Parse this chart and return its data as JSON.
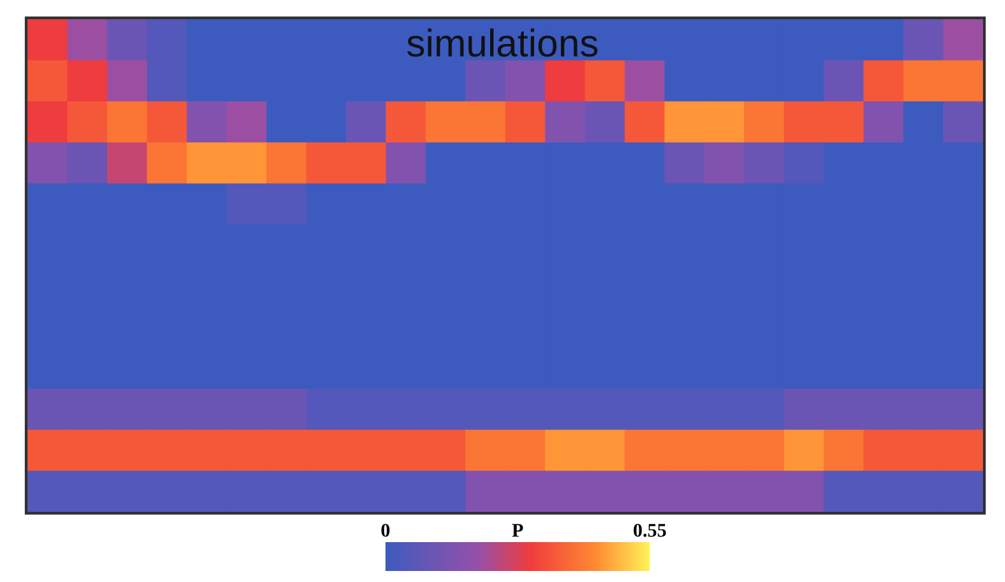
{
  "chart_data": {
    "type": "heatmap",
    "title": "simulations",
    "clabel": "P",
    "clim": [
      0,
      0.55
    ],
    "cticks": [
      0,
      0.55
    ],
    "categories": [
      null,
      null,
      null,
      null,
      null,
      null,
      null,
      null,
      null,
      null,
      null,
      null,
      null,
      null,
      null,
      null,
      null,
      null,
      null,
      null,
      null,
      null,
      null,
      null
    ],
    "y_categories": [
      null,
      null,
      null,
      null,
      null,
      null,
      null,
      null,
      null,
      null,
      null,
      null
    ],
    "cells": [
      [
        0.3,
        0.2,
        0.1,
        0.05,
        0,
        0,
        0,
        0,
        0,
        0,
        0,
        0,
        0,
        0,
        0,
        0,
        0,
        0,
        0,
        0,
        0,
        0,
        0.1,
        0.2
      ],
      [
        0.35,
        0.3,
        0.2,
        0.05,
        0,
        0,
        0,
        0,
        0,
        0,
        0,
        0.1,
        0.15,
        0.3,
        0.35,
        0.2,
        0,
        0,
        0,
        0,
        0.1,
        0.35,
        0.4,
        0.4
      ],
      [
        0.3,
        0.35,
        0.4,
        0.35,
        0.15,
        0.2,
        0,
        0,
        0.1,
        0.35,
        0.4,
        0.4,
        0.35,
        0.15,
        0.1,
        0.35,
        0.45,
        0.45,
        0.4,
        0.35,
        0.35,
        0.15,
        0,
        0.1
      ],
      [
        0.15,
        0.1,
        0.25,
        0.4,
        0.45,
        0.45,
        0.4,
        0.35,
        0.35,
        0.15,
        0,
        0,
        0,
        0,
        0,
        0,
        0.1,
        0.15,
        0.1,
        0.05,
        0,
        0,
        0,
        0
      ],
      [
        0,
        0,
        0,
        0,
        0,
        0.05,
        0.05,
        0,
        0,
        0,
        0,
        0,
        0,
        0,
        0,
        0,
        0,
        0,
        0,
        0,
        0,
        0,
        0,
        0
      ],
      [
        0,
        0,
        0,
        0,
        0,
        0,
        0,
        0,
        0,
        0,
        0,
        0,
        0,
        0,
        0,
        0,
        0,
        0,
        0,
        0,
        0,
        0,
        0,
        0
      ],
      [
        0,
        0,
        0,
        0,
        0,
        0,
        0,
        0,
        0,
        0,
        0,
        0,
        0,
        0,
        0,
        0,
        0,
        0,
        0,
        0,
        0,
        0,
        0,
        0
      ],
      [
        0,
        0,
        0,
        0,
        0,
        0,
        0,
        0,
        0,
        0,
        0,
        0,
        0,
        0,
        0,
        0,
        0,
        0,
        0,
        0,
        0,
        0,
        0,
        0
      ],
      [
        0,
        0,
        0,
        0,
        0,
        0,
        0,
        0,
        0,
        0,
        0,
        0,
        0,
        0,
        0,
        0,
        0,
        0,
        0,
        0,
        0,
        0,
        0,
        0
      ],
      [
        0.1,
        0.1,
        0.1,
        0.1,
        0.1,
        0.1,
        0.1,
        0.05,
        0.05,
        0.05,
        0.05,
        0.05,
        0.05,
        0.05,
        0.05,
        0.05,
        0.05,
        0.05,
        0.05,
        0.1,
        0.1,
        0.1,
        0.1,
        0.1
      ],
      [
        0.35,
        0.35,
        0.35,
        0.35,
        0.35,
        0.35,
        0.35,
        0.35,
        0.35,
        0.35,
        0.35,
        0.4,
        0.4,
        0.45,
        0.45,
        0.4,
        0.4,
        0.4,
        0.4,
        0.45,
        0.4,
        0.35,
        0.35,
        0.35
      ],
      [
        0.05,
        0.05,
        0.05,
        0.05,
        0.05,
        0.05,
        0.05,
        0.05,
        0.05,
        0.05,
        0.05,
        0.15,
        0.15,
        0.15,
        0.15,
        0.15,
        0.15,
        0.15,
        0.15,
        0.15,
        0.05,
        0.05,
        0.05,
        0.05
      ]
    ]
  }
}
